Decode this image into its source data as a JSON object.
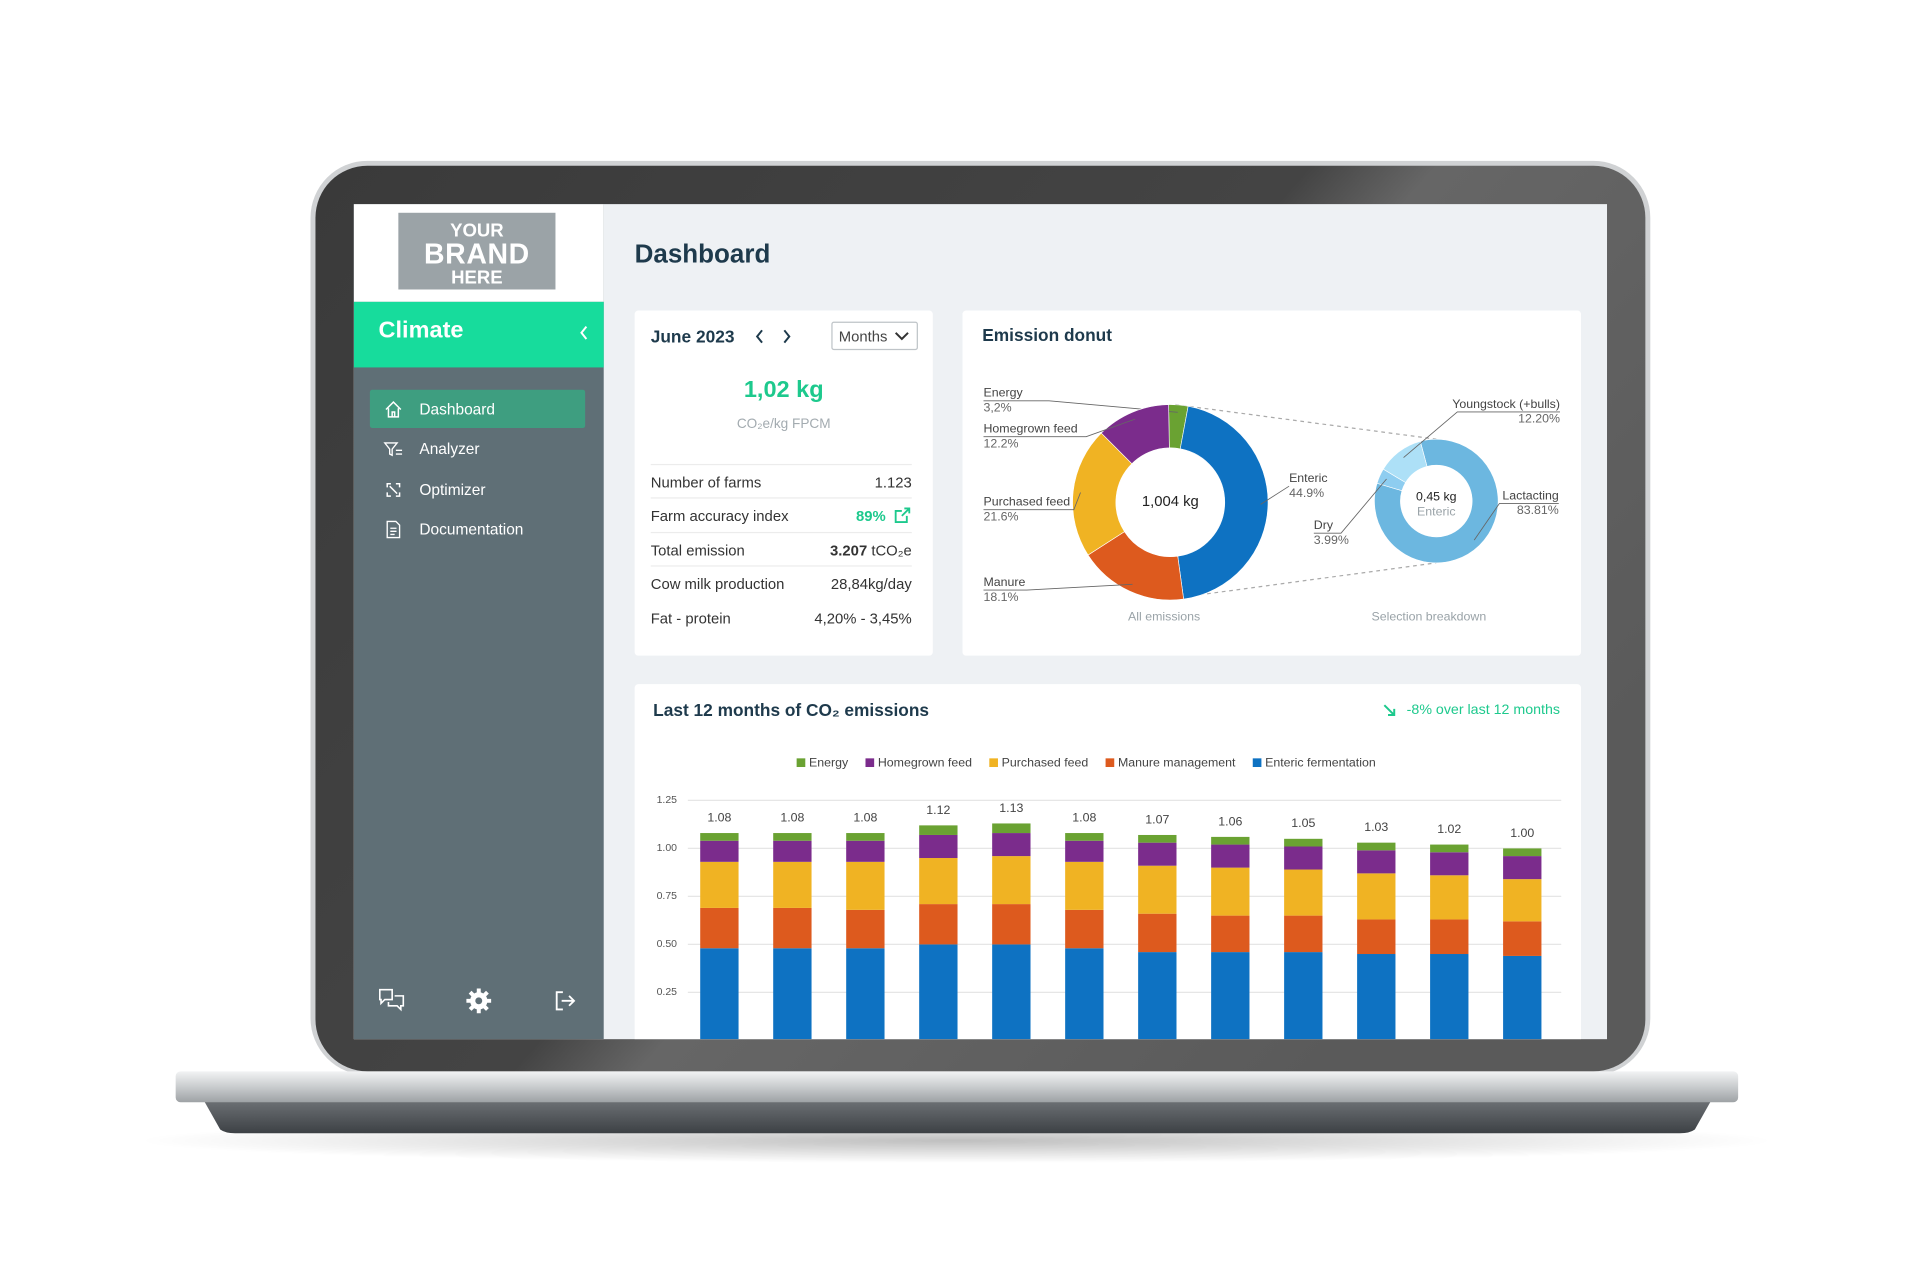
{
  "brand": {
    "line1": "YOUR",
    "line2": "BRAND",
    "line3": "HERE"
  },
  "sidebar": {
    "app": "Climate",
    "nav": [
      "Dashboard",
      "Analyzer",
      "Optimizer",
      "Documentation"
    ]
  },
  "page_title": "Dashboard",
  "summary": {
    "period": "June 2023",
    "granularity": "Months",
    "headline": "1,02 kg",
    "headline_unit": "CO₂e/kg FPCM",
    "rows": [
      {
        "label": "Number of farms",
        "value": "1.123"
      },
      {
        "label": "Farm accuracy index",
        "value": "89%"
      },
      {
        "label": "Total emission",
        "value": "3.207",
        "unit": "tCO₂e"
      },
      {
        "label": "Cow milk production",
        "value": "28,84kg/day"
      },
      {
        "label": "Fat - protein",
        "value": "4,20% - 3,45%"
      }
    ]
  },
  "donut_card_title": "Emission donut",
  "chart_data": [
    {
      "type": "donut",
      "center_value": "1,004 kg",
      "caption": "All emissions",
      "categories": [
        "Energy",
        "Enteric",
        "Manure",
        "Purchased feed",
        "Homegrown feed"
      ],
      "values": [
        3.2,
        44.9,
        18.1,
        21.6,
        12.2
      ],
      "value_labels": [
        "3,2%",
        "44.9%",
        "18.1%",
        "21.6%",
        "12.2%"
      ],
      "colors": [
        "#6aa232",
        "#0e72c2",
        "#dd5a1e",
        "#f0b323",
        "#7b2c8c"
      ]
    },
    {
      "type": "donut",
      "center_value": "0,45 kg",
      "center_label": "Enteric",
      "caption": "Selection breakdown",
      "categories": [
        "Lactacting",
        "Dry",
        "Youngstock (+bulls)"
      ],
      "values": [
        83.81,
        3.99,
        12.2
      ],
      "value_labels": [
        "83.81%",
        "3.99%",
        "12.20%"
      ],
      "colors": [
        "#6cb7e0",
        "#8ecdf0",
        "#ade0f7"
      ]
    },
    {
      "type": "bar",
      "stacked": true,
      "title": "Last 12 months of CO₂ emissions",
      "annotation": "-8% over last 12 months",
      "series": [
        {
          "name": "Energy",
          "color": "#6aa232",
          "values": [
            0.04,
            0.04,
            0.04,
            0.05,
            0.05,
            0.04,
            0.04,
            0.04,
            0.04,
            0.04,
            0.04,
            0.04
          ]
        },
        {
          "name": "Homegrown feed",
          "color": "#7b2c8c",
          "values": [
            0.11,
            0.11,
            0.11,
            0.12,
            0.12,
            0.11,
            0.12,
            0.12,
            0.12,
            0.12,
            0.12,
            0.12
          ]
        },
        {
          "name": "Purchased feed",
          "color": "#f0b323",
          "values": [
            0.24,
            0.24,
            0.25,
            0.24,
            0.25,
            0.25,
            0.25,
            0.25,
            0.24,
            0.24,
            0.23,
            0.22
          ]
        },
        {
          "name": "Manure management",
          "color": "#dd5a1e",
          "values": [
            0.21,
            0.21,
            0.2,
            0.21,
            0.21,
            0.2,
            0.2,
            0.19,
            0.19,
            0.18,
            0.18,
            0.18
          ]
        },
        {
          "name": "Enteric fermentation",
          "color": "#0e72c2",
          "values": [
            0.48,
            0.48,
            0.48,
            0.5,
            0.5,
            0.48,
            0.46,
            0.46,
            0.46,
            0.45,
            0.45,
            0.44
          ]
        }
      ],
      "totals": {
        "values": [
          1.08,
          1.08,
          1.08,
          1.12,
          1.13,
          1.08,
          1.07,
          1.06,
          1.05,
          1.03,
          1.02,
          1.0
        ],
        "value_labels": [
          "1.08",
          "1.08",
          "1.08",
          "1.12",
          "1.13",
          "1.08",
          "1.07",
          "1.06",
          "1.05",
          "1.03",
          "1.02",
          "1.00"
        ]
      },
      "ylim": [
        0,
        1.25
      ],
      "yticks": [
        0.25,
        {
          "value": 0.5,
          "label": "0.50"
        },
        0.75,
        {
          "value": 1,
          "label": "1.00"
        },
        1.25
      ],
      "grid": true
    }
  ]
}
